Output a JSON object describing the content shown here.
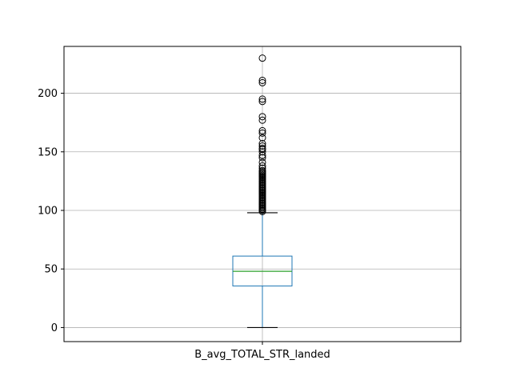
{
  "chart_data": {
    "type": "box",
    "title": "",
    "xlabel": "",
    "ylabel": "",
    "grid": true,
    "categories": [
      "B_avg_TOTAL_STR_landed"
    ],
    "ylim": [
      -12,
      240
    ],
    "yticks": [
      0,
      50,
      100,
      150,
      200
    ],
    "ytick_labels": [
      "0",
      "50",
      "100",
      "150",
      "200"
    ],
    "box": {
      "whisker_low": 0,
      "q1": 35.5,
      "median": 48,
      "q3": 61,
      "whisker_high": 98
    },
    "outliers": [
      99,
      100,
      101,
      102,
      103,
      104,
      105,
      106,
      107,
      108,
      109,
      110,
      111,
      112,
      113,
      114,
      115,
      116,
      117,
      118,
      119,
      120,
      121,
      122,
      123,
      124,
      125,
      126,
      127,
      128,
      129,
      130,
      131,
      132,
      133,
      134,
      136,
      138,
      141,
      145,
      147,
      150,
      152,
      153,
      155,
      157,
      162,
      166,
      168,
      177,
      180,
      193,
      195,
      209,
      211,
      230
    ],
    "colors": {
      "box": "#1f77b4",
      "median": "#2ca02c",
      "cap": "#000000",
      "outlier": "#000000",
      "grid": "#b0b0b0"
    }
  }
}
